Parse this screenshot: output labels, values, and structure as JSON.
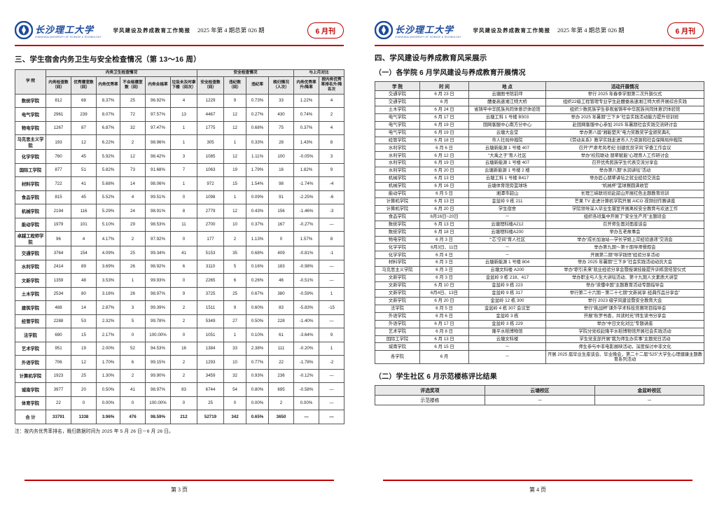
{
  "colors": {
    "accent_red": "#c00000",
    "logo_blue": "#1c4a9c",
    "table_header_bg": "#e9e9e9"
  },
  "header": {
    "logo_cn": "长沙理工大学",
    "logo_en": "CHANGSHA UNIVERSITY OF SCIENCE & TECHNOLOGY",
    "bulletin_name": "学风建设及养成教育工作简报",
    "issue": "2025 年第 4 期总第 026 期",
    "badge": "6 月刊"
  },
  "left": {
    "title": "三、学生宿舍内务卫生与安全检查情况（第 13～16 周）",
    "table": {
      "groups": [
        "内务卫生检查情况",
        "安全检查情况",
        "与上月对比"
      ],
      "cols": [
        "学 院",
        "内务检查数（间）",
        "优秀寝室数（间）",
        "内务优秀率",
        "不合格寝室数（间）",
        "内务合格率",
        "垃圾未及时拿下楼（间次）",
        "安全检查数（间）",
        "违纪数（间）",
        "违纪率",
        "晚归情况（人次）",
        "内务优秀率升/降率",
        "按内务优秀率排名升/降名次"
      ],
      "rows": [
        [
          "数统学院",
          "812",
          "68",
          "8.37%",
          "25",
          "96.92%",
          "4",
          "1229",
          "9",
          "0.73%",
          "33",
          "1.22%",
          "4"
        ],
        [
          "电气学院",
          "2961",
          "239",
          "8.07%",
          "72",
          "97.57%",
          "13",
          "4467",
          "12",
          "0.27%",
          "430",
          "0.74%",
          "2"
        ],
        [
          "物电学院",
          "1267",
          "87",
          "6.87%",
          "32",
          "97.47%",
          "1",
          "1775",
          "12",
          "0.68%",
          "75",
          "0.37%",
          "4"
        ],
        [
          "马克思主义学院",
          "193",
          "12",
          "6.22%",
          "2",
          "98.96%",
          "1",
          "305",
          "1",
          "0.33%",
          "28",
          "1.43%",
          "8"
        ],
        [
          "化学学院",
          "760",
          "45",
          "5.92%",
          "12",
          "98.42%",
          "3",
          "1085",
          "12",
          "1.11%",
          "100",
          "-0.05%",
          "3"
        ],
        [
          "国际工学院",
          "877",
          "51",
          "5.82%",
          "73",
          "91.68%",
          "7",
          "1063",
          "19",
          "1.79%",
          "16",
          "1.82%",
          "9"
        ],
        [
          "材料学院",
          "722",
          "41",
          "5.68%",
          "14",
          "98.06%",
          "1",
          "972",
          "15",
          "1.54%",
          "98",
          "-1.74%",
          "-4"
        ],
        [
          "食品学院",
          "815",
          "45",
          "5.52%",
          "4",
          "99.51%",
          "0",
          "1098",
          "1",
          "0.09%",
          "91",
          "-2.25%",
          "-6"
        ],
        [
          "机械学院",
          "2194",
          "116",
          "5.29%",
          "24",
          "98.91%",
          "8",
          "2779",
          "12",
          "0.43%",
          "156",
          "-1.46%",
          "-3"
        ],
        [
          "能动学院",
          "1979",
          "101",
          "5.10%",
          "29",
          "98.53%",
          "11",
          "2700",
          "10",
          "0.37%",
          "167",
          "-0.27%",
          "—"
        ],
        [
          "卓越工程师学院",
          "96",
          "4",
          "4.17%",
          "2",
          "97.92%",
          "0",
          "177",
          "2",
          "1.13%",
          "0",
          "1.57%",
          "8"
        ],
        [
          "交通学院",
          "3764",
          "154",
          "4.09%",
          "25",
          "99.34%",
          "41",
          "5153",
          "35",
          "0.68%",
          "409",
          "-0.81%",
          "-1"
        ],
        [
          "水利学院",
          "2414",
          "89",
          "3.69%",
          "26",
          "98.92%",
          "6",
          "3110",
          "5",
          "0.16%",
          "183",
          "-0.98%",
          "—"
        ],
        [
          "文新学院",
          "1359",
          "48",
          "3.53%",
          "1",
          "99.93%",
          "0",
          "2265",
          "6",
          "0.26%",
          "46",
          "-0.51%",
          "—"
        ],
        [
          "土木学院",
          "2534",
          "80",
          "3.16%",
          "26",
          "98.97%",
          "9",
          "3725",
          "25",
          "0.67%",
          "380",
          "-0.59%",
          "1"
        ],
        [
          "建筑学院",
          "488",
          "14",
          "2.87%",
          "3",
          "99.39%",
          "2",
          "1511",
          "9",
          "0.60%",
          "83",
          "-5.83%",
          "-15"
        ],
        [
          "经管学院",
          "2288",
          "53",
          "2.32%",
          "5",
          "99.78%",
          "2",
          "5349",
          "27",
          "0.50%",
          "228",
          "-1.40%",
          "—"
        ],
        [
          "法学院",
          "690",
          "15",
          "2.17%",
          "0",
          "100.00%",
          "0",
          "1051",
          "1",
          "0.10%",
          "61",
          "-3.64%",
          "9"
        ],
        [
          "艺术学院",
          "951",
          "19",
          "2.00%",
          "52",
          "94.53%",
          "16",
          "1384",
          "33",
          "2.38%",
          "111",
          "-0.20%",
          "1"
        ],
        [
          "外语学院",
          "706",
          "12",
          "1.70%",
          "6",
          "99.15%",
          "2",
          "1293",
          "10",
          "0.77%",
          "22",
          "-1.78%",
          "-2"
        ],
        [
          "计算机学院",
          "1923",
          "25",
          "1.30%",
          "2",
          "99.90%",
          "2",
          "3459",
          "32",
          "0.93%",
          "236",
          "-0.12%",
          "—"
        ],
        [
          "城南学院",
          "3977",
          "20",
          "0.50%",
          "41",
          "98.97%",
          "83",
          "6744",
          "54",
          "0.80%",
          "695",
          "-0.58%",
          "—"
        ],
        [
          "体育学院",
          "22",
          "0",
          "0.00%",
          "0",
          "100.00%",
          "0",
          "25",
          "0",
          "0.00%",
          "2",
          "0.00%",
          "—"
        ],
        [
          "合 计",
          "33791",
          "1338",
          "3.96%",
          "476",
          "98.59%",
          "212",
          "52719",
          "342",
          "0.65%",
          "3650",
          "—",
          "—"
        ]
      ]
    },
    "note": "注：按内务优秀率排名，晚归数据时间为 2025 年 5 月 26 日－6 月 26 日。",
    "page_number": "第 3 页"
  },
  "right": {
    "title": "四、学风建设与养成教育风采展示",
    "section1_title": "（一）各学院 6 月学风建设与养成教育开展情况",
    "activity": {
      "headers": [
        "学 院",
        "时 间",
        "地 点",
        "活动开展情况"
      ],
      "rows": [
        [
          "交通学院",
          "6 月 23 日",
          "云塘图书馆前坪",
          "举行 2025 年春季学期第二次升旗仪式"
        ],
        [
          "交通学院",
          "6 月",
          "醴娄高速湘江特大桥",
          "组织22级工程管理专业学生赴醴娄高速湘江特大桥开展综合实践"
        ],
        [
          "土木学院",
          "6 月 24 日",
          "省铸牢中华民族共同体意识体验馆",
          "组织少数民族学生参观省铸牢中华民族共同体意识体验馆"
        ],
        [
          "电气学院",
          "6 月 17 日",
          "云塘工科 1 号楼 B503",
          "举办 2025 年暑期“三下乡”社会实践活动能力提升培训班"
        ],
        [
          "电气学院",
          "6 月 19 日",
          "国网客服中心南方分中心",
          "赴国网客服中心参加 2025 年暑期社会实践交流研讨会"
        ],
        [
          "电气学院",
          "6 月 19 日",
          "云塘大会堂",
          "举办第八届“湘能楚天”电力奖教奖学金颁奖典礼"
        ],
        [
          "经管学院",
          "6 月 18 日",
          "市人社局仲裁院",
          "《劳动关系》教学实践走进市人力资源和社会保障局仲裁院"
        ],
        [
          "水利学院",
          "6 月 6 日",
          "云塘新能源 1 号楼 407",
          "召开“严肃考风考纪 创建优良学风”学委工作会议"
        ],
        [
          "水利学院",
          "6 月 12 日",
          "“大禹之子”育人社区",
          "举办“校院联动 朋辈赋能”心理育人工作研讨会"
        ],
        [
          "水利学院",
          "6 月 19 日",
          "云塘新能源 1 号楼 407",
          "召开优秀民族学生代表交流分享会"
        ],
        [
          "水利学院",
          "6 月 20 日",
          "云塘新能源 1 号楼 2 楼",
          "举办第八期“水润讲坛”活动"
        ],
        [
          "机械学院",
          "6 月 13 日",
          "云塘工科 1 号楼 B417",
          "举办匠心朋辈讲坛之就业经验交流会"
        ],
        [
          "机械学院",
          "6 月 16 日",
          "云塘体育馆旁篮球场",
          "“机械杯”篮球赛圆满收官"
        ],
        [
          "能动学院",
          "6 月 5 日",
          "湘潭市韶山",
          "长理三峡联培班赴韶山开展红色主题教育培训"
        ],
        [
          "计算机学院",
          "6 月 13 日",
          "金盆岭 9 栋 211",
          "芒果 TV 走进计算机学院开展 AICG 视频创作赛讲座"
        ],
        [
          "计算机学院",
          "6 月 20 日",
          "学生宿舍",
          "学院领导深入毕业生寝室开展离校安全教育与欢送工作"
        ],
        [
          "食品学院",
          "6月16日~20日",
          "－",
          "组织各班集中开展了“安全生产月”主题班会"
        ],
        [
          "数统学院",
          "6 月 13 日",
          "云塘理科楼A212",
          "召开师生面对面座谈会"
        ],
        [
          "数统学院",
          "6 月 18 日",
          "云塘理科楼A200",
          "举办五老故事会"
        ],
        [
          "物电学院",
          "6 月 3 日",
          "“‘芯’空间”育人社区",
          "举办“成长加油站—学长学姐上岸经验速递”交流会"
        ],
        [
          "化学学院",
          "6月3日、11日",
          "－",
          "举办第九期～第十期导师餐叙会"
        ],
        [
          "化学学院",
          "6 月 4 日",
          "－",
          "开展第二期“导学践悟”经验分享活动"
        ],
        [
          "材料学院",
          "6 月 3 日",
          "云塘新能源 1 号楼 804",
          "举办 2025 年暑期“三下乡”社会实践活动动员大会"
        ],
        [
          "马克思主义学院",
          "6 月 3 日",
          "云塘文科楼 A200",
          "举办“职引未来”就业经验分享会暨授课技能提升训练营结营仪式"
        ],
        [
          "文新学院",
          "6 月 3 日",
          "金盆岭 9 栋 218、417",
          "举办职业与人生大讲坛活动、第十九期人文素质大讲堂"
        ],
        [
          "文新学院",
          "6 月 10 日",
          "金盆岭 9 栋 223",
          "举办“读懂中国”主题教育活动专题指导会"
        ],
        [
          "文新学院",
          "6月4日、13日",
          "金盆岭 9 栋 317",
          "举行第二十六期－第二十七期“文新阅享·经典作品分享会”"
        ],
        [
          "文新学院",
          "6 月 20 日",
          "金盆岭 12 栋 300",
          "举行 2023 级学风建设暨安全教育大会"
        ],
        [
          "法学院",
          "6 月 5 日",
          "金盆岭 4 栋 307 会议室",
          "举行“挑战杯”课外学术科技竞赛项目指导会"
        ],
        [
          "外语学院",
          "6 月 6 日",
          "金盆岭 3 栋",
          "开展“秋罗书香，共读时光”师生读书分享会"
        ],
        [
          "外语学院",
          "6 月 17 日",
          "金盆岭 3 栋 229",
          "举办“中日文化对比”专题讲座"
        ],
        [
          "艺术学院",
          "6 月 8 日",
          "隆平水稻博物馆",
          "学院分党校赴隆平水稻博物馆开展社会实践活动"
        ],
        [
          "国际工学院",
          "6 月 13 日",
          "云塘文科楼",
          "学生党支部开展“我为师生办实事”主题党日活动"
        ],
        [
          "城南学院",
          "6 月 15 日",
          "－",
          "师生参与中非电影展映活动，深度探讨中非文化"
        ],
        [
          "各学院",
          "6 月",
          "－",
          "开展 2025 届毕业生座谈会、毕业晚会，第二十二届“525”大学生心理健康主题教育系列活动"
        ]
      ]
    },
    "section2_title": "（二）学生社区 6 月示范楼栋评比结果",
    "award": {
      "headers": [
        "评选奖项",
        "云塘校区",
        "金盆岭校区"
      ],
      "rows": [
        [
          "示范楼栋",
          "－",
          "－"
        ]
      ]
    },
    "page_number": "第 4 页"
  }
}
